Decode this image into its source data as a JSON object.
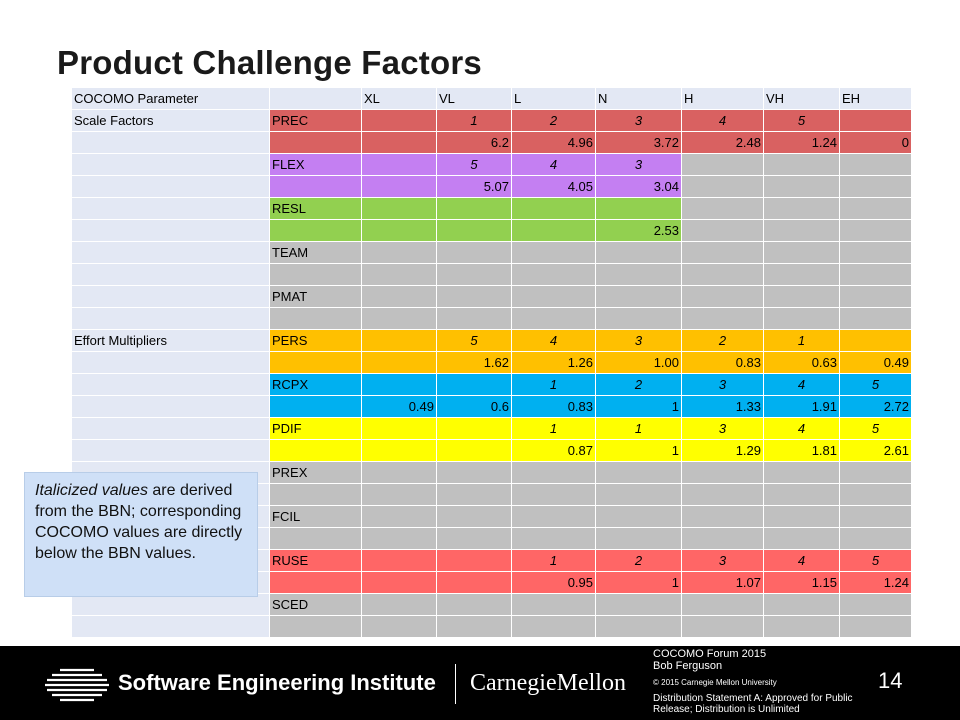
{
  "slide": {
    "title": "Product Challenge Factors",
    "page_number": "14"
  },
  "colors": {
    "header": "#e3e8f4",
    "blank": "#e3e8f4",
    "gray": "#c0c0c0",
    "prec": "#d96161",
    "flex": "#c47ff2",
    "resl": "#92d050",
    "pers": "#ffc000",
    "rcpx": "#00b0f0",
    "pdif": "#ffff00",
    "ruse": "#ff6666"
  },
  "table": {
    "columns": [
      "COCOMO Parameter",
      "",
      "XL",
      "VL",
      "L",
      "N",
      "H",
      "VH",
      "EH"
    ],
    "rows": [
      {
        "group": "Scale Factors",
        "name": "PREC",
        "color": "prec",
        "kind": "bbn",
        "values": [
          "",
          "1",
          "2",
          "3",
          "4",
          "5",
          ""
        ]
      },
      {
        "group": "",
        "name": "",
        "color": "prec",
        "kind": "num",
        "values": [
          "",
          "6.2",
          "4.96",
          "3.72",
          "2.48",
          "1.24",
          "0"
        ]
      },
      {
        "group": "",
        "name": "FLEX",
        "color": "flex",
        "kind": "bbn",
        "gray_from": 4,
        "values": [
          "",
          "5",
          "4",
          "3",
          "",
          "",
          ""
        ]
      },
      {
        "group": "",
        "name": "",
        "color": "flex",
        "kind": "num",
        "gray_from": 4,
        "values": [
          "",
          "5.07",
          "4.05",
          "3.04",
          "",
          "",
          ""
        ]
      },
      {
        "group": "",
        "name": "RESL",
        "color": "resl",
        "kind": "bbn",
        "gray_from": 4,
        "values": [
          "",
          "",
          "",
          "",
          "",
          "",
          ""
        ]
      },
      {
        "group": "",
        "name": "",
        "color": "resl",
        "kind": "num",
        "gray_from": 4,
        "values": [
          "",
          "",
          "",
          "2.53",
          "",
          "",
          ""
        ]
      },
      {
        "group": "",
        "name": "TEAM",
        "color": "gray",
        "kind": "bbn",
        "values": [
          "",
          "",
          "",
          "",
          "",
          "",
          ""
        ]
      },
      {
        "group": "",
        "name": "",
        "color": "gray",
        "kind": "num",
        "values": [
          "",
          "",
          "",
          "",
          "",
          "",
          ""
        ]
      },
      {
        "group": "",
        "name": "PMAT",
        "color": "gray",
        "kind": "bbn",
        "values": [
          "",
          "",
          "",
          "",
          "",
          "",
          ""
        ]
      },
      {
        "group": "",
        "name": "",
        "color": "gray",
        "kind": "num",
        "values": [
          "",
          "",
          "",
          "",
          "",
          "",
          ""
        ]
      },
      {
        "group": "Effort Multipliers",
        "name": "PERS",
        "color": "pers",
        "kind": "bbn",
        "values": [
          "",
          "5",
          "4",
          "3",
          "2",
          "1",
          ""
        ]
      },
      {
        "group": "",
        "name": "",
        "color": "pers",
        "kind": "num",
        "values": [
          "",
          "1.62",
          "1.26",
          "1.00",
          "0.83",
          "0.63",
          "0.49"
        ]
      },
      {
        "group": "",
        "name": "RCPX",
        "color": "rcpx",
        "kind": "bbn",
        "values": [
          "",
          "",
          "1",
          "2",
          "3",
          "4",
          "5"
        ]
      },
      {
        "group": "",
        "name": "",
        "color": "rcpx",
        "kind": "num",
        "values": [
          "0.49",
          "0.6",
          "0.83",
          "1",
          "1.33",
          "1.91",
          "2.72"
        ]
      },
      {
        "group": "",
        "name": "PDIF",
        "color": "pdif",
        "kind": "bbn",
        "values": [
          "",
          "",
          "1",
          "1",
          "3",
          "4",
          "5"
        ]
      },
      {
        "group": "",
        "name": "",
        "color": "pdif",
        "kind": "num",
        "values": [
          "",
          "",
          "0.87",
          "1",
          "1.29",
          "1.81",
          "2.61"
        ]
      },
      {
        "group": "",
        "name": "PREX",
        "color": "gray",
        "kind": "bbn",
        "values": [
          "",
          "",
          "",
          "",
          "",
          "",
          ""
        ]
      },
      {
        "group": "",
        "name": "",
        "color": "gray",
        "kind": "num",
        "values": [
          "",
          "",
          "",
          "",
          "",
          "",
          ""
        ]
      },
      {
        "group": "",
        "name": "FCIL",
        "color": "gray",
        "kind": "bbn",
        "values": [
          "",
          "",
          "",
          "",
          "",
          "",
          ""
        ]
      },
      {
        "group": "",
        "name": "",
        "color": "gray",
        "kind": "num",
        "values": [
          "",
          "",
          "",
          "",
          "",
          "",
          ""
        ]
      },
      {
        "group": "",
        "name": "RUSE",
        "color": "ruse",
        "kind": "bbn",
        "values": [
          "",
          "",
          "1",
          "2",
          "3",
          "4",
          "5"
        ]
      },
      {
        "group": "",
        "name": "",
        "color": "ruse",
        "kind": "num",
        "values": [
          "",
          "",
          "0.95",
          "1",
          "1.07",
          "1.15",
          "1.24"
        ]
      },
      {
        "group": "",
        "name": "SCED",
        "color": "gray",
        "kind": "bbn",
        "values": [
          "",
          "",
          "",
          "",
          "",
          "",
          ""
        ]
      },
      {
        "group": "",
        "name": "",
        "color": "gray",
        "kind": "num",
        "values": [
          "",
          "",
          "",
          "",
          "",
          "",
          ""
        ]
      }
    ]
  },
  "note": {
    "italic_part": "Italicized values",
    "rest": " are derived from the BBN; corresponding COCOMO values are directly below the BBN values."
  },
  "footer": {
    "org": "Software Engineering Institute",
    "university": "CarnegieMellon",
    "event": "COCOMO Forum 2015",
    "author": "Bob Ferguson",
    "copyright": "© 2015 Carnegie Mellon University",
    "distribution": "Distribution Statement A: Approved for Public Release; Distribution is Unlimited",
    "logo_icon": "sei-globe-icon"
  }
}
